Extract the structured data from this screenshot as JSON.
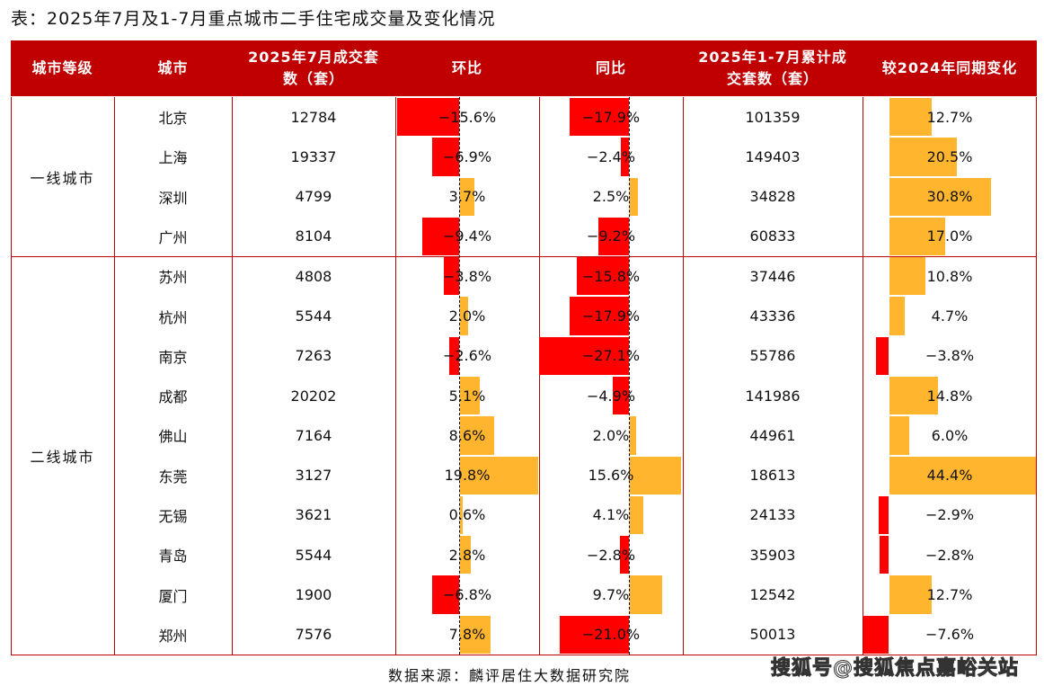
{
  "title": "表：2025年7月及1-7月重点城市二手住宅成交量及变化情况",
  "headers": [
    "城市等级",
    "城市",
    "2025年7月成交套数（套）",
    "环比",
    "同比",
    "2025年1-7月累计成交套数（套）",
    "较2024年同期变化"
  ],
  "tiers": [
    {
      "label": "一线城市",
      "count": 4
    },
    {
      "label": "二线城市",
      "count": 10
    }
  ],
  "colors": {
    "header_bg": "#c00000",
    "negative": "#ff0000",
    "positive": "#ffb52e"
  },
  "rows": [
    {
      "city": "北京",
      "july": "12784",
      "mom": -15.6,
      "yoy": -17.9,
      "cum": "101359",
      "cum_chg": 12.7
    },
    {
      "city": "上海",
      "july": "19337",
      "mom": -6.9,
      "yoy": -2.4,
      "cum": "149403",
      "cum_chg": 20.5
    },
    {
      "city": "深圳",
      "july": "4799",
      "mom": 3.7,
      "yoy": 2.5,
      "cum": "34828",
      "cum_chg": 30.8
    },
    {
      "city": "广州",
      "july": "8104",
      "mom": -9.4,
      "yoy": -9.2,
      "cum": "60833",
      "cum_chg": 17.0
    },
    {
      "city": "苏州",
      "july": "4808",
      "mom": -3.8,
      "yoy": -15.8,
      "cum": "37446",
      "cum_chg": 10.8
    },
    {
      "city": "杭州",
      "july": "5544",
      "mom": 2.0,
      "yoy": -17.9,
      "cum": "43336",
      "cum_chg": 4.7
    },
    {
      "city": "南京",
      "july": "7263",
      "mom": -2.6,
      "yoy": -27.1,
      "cum": "55786",
      "cum_chg": -3.8
    },
    {
      "city": "成都",
      "july": "20202",
      "mom": 5.1,
      "yoy": -4.9,
      "cum": "141986",
      "cum_chg": 14.8
    },
    {
      "city": "佛山",
      "july": "7164",
      "mom": 8.6,
      "yoy": 2.0,
      "cum": "44961",
      "cum_chg": 6.0
    },
    {
      "city": "东莞",
      "july": "3127",
      "mom": 19.8,
      "yoy": 15.6,
      "cum": "18613",
      "cum_chg": 44.4
    },
    {
      "city": "无锡",
      "july": "3621",
      "mom": 0.6,
      "yoy": 4.1,
      "cum": "24133",
      "cum_chg": -2.9
    },
    {
      "city": "青岛",
      "july": "5544",
      "mom": 2.8,
      "yoy": -2.8,
      "cum": "35903",
      "cum_chg": -2.8
    },
    {
      "city": "厦门",
      "july": "1900",
      "mom": -6.8,
      "yoy": 9.7,
      "cum": "12542",
      "cum_chg": 12.7
    },
    {
      "city": "郑州",
      "july": "7576",
      "mom": 7.8,
      "yoy": -21.0,
      "cum": "50013",
      "cum_chg": -7.6
    }
  ],
  "source": "数据来源：麟评居住大数据研究院",
  "watermark": "搜狐号@搜狐焦点嘉峪关站"
}
